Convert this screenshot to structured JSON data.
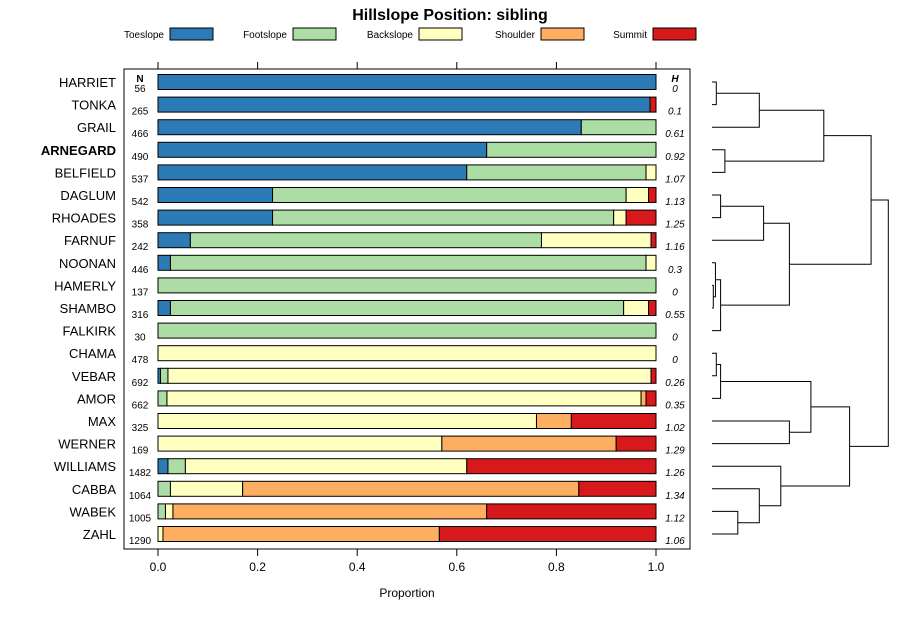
{
  "chart_data": {
    "type": "bar",
    "stacked": true,
    "orientation": "horizontal",
    "title": "Hillslope Position: sibling",
    "xlabel": "Proportion",
    "xlim": [
      0,
      1
    ],
    "x_ticks": [
      "0.0",
      "0.2",
      "0.4",
      "0.6",
      "0.8",
      "1.0"
    ],
    "n_header": "N",
    "h_header": "H",
    "legend": [
      {
        "name": "Toeslope",
        "color": "#2C7BB6"
      },
      {
        "name": "Footslope",
        "color": "#ABDDA4"
      },
      {
        "name": "Backslope",
        "color": "#FFFFBF"
      },
      {
        "name": "Shoulder",
        "color": "#FDAE61"
      },
      {
        "name": "Summit",
        "color": "#D7191C"
      }
    ],
    "rows": [
      {
        "name": "HARRIET",
        "n": "56",
        "h": "0",
        "bold": false,
        "values": [
          1.0,
          0,
          0,
          0,
          0
        ]
      },
      {
        "name": "TONKA",
        "n": "265",
        "h": "0.1",
        "bold": false,
        "values": [
          0.988,
          0,
          0,
          0,
          0.012
        ]
      },
      {
        "name": "GRAIL",
        "n": "466",
        "h": "0.61",
        "bold": false,
        "values": [
          0.85,
          0.15,
          0,
          0,
          0
        ]
      },
      {
        "name": "ARNEGARD",
        "n": "490",
        "h": "0.92",
        "bold": true,
        "values": [
          0.66,
          0.34,
          0,
          0,
          0
        ]
      },
      {
        "name": "BELFIELD",
        "n": "537",
        "h": "1.07",
        "bold": false,
        "values": [
          0.62,
          0.36,
          0.02,
          0,
          0
        ]
      },
      {
        "name": "DAGLUM",
        "n": "542",
        "h": "1.13",
        "bold": false,
        "values": [
          0.23,
          0.71,
          0.045,
          0,
          0.015
        ]
      },
      {
        "name": "RHOADES",
        "n": "358",
        "h": "1.25",
        "bold": false,
        "values": [
          0.23,
          0.685,
          0.025,
          0,
          0.06
        ]
      },
      {
        "name": "FARNUF",
        "n": "242",
        "h": "1.16",
        "bold": false,
        "values": [
          0.065,
          0.705,
          0.22,
          0,
          0.01
        ]
      },
      {
        "name": "NOONAN",
        "n": "446",
        "h": "0.3",
        "bold": false,
        "values": [
          0.025,
          0.955,
          0.02,
          0,
          0
        ]
      },
      {
        "name": "HAMERLY",
        "n": "137",
        "h": "0",
        "bold": false,
        "values": [
          0,
          1.0,
          0,
          0,
          0
        ]
      },
      {
        "name": "SHAMBO",
        "n": "316",
        "h": "0.55",
        "bold": false,
        "values": [
          0.025,
          0.91,
          0.05,
          0,
          0.015
        ]
      },
      {
        "name": "FALKIRK",
        "n": "30",
        "h": "0",
        "bold": false,
        "values": [
          0,
          1.0,
          0,
          0,
          0
        ]
      },
      {
        "name": "CHAMA",
        "n": "478",
        "h": "0",
        "bold": false,
        "values": [
          0,
          0,
          1.0,
          0,
          0
        ]
      },
      {
        "name": "VEBAR",
        "n": "692",
        "h": "0.26",
        "bold": false,
        "values": [
          0.005,
          0.015,
          0.97,
          0,
          0.01
        ]
      },
      {
        "name": "AMOR",
        "n": "662",
        "h": "0.35",
        "bold": false,
        "values": [
          0,
          0.018,
          0.952,
          0.01,
          0.02
        ]
      },
      {
        "name": "MAX",
        "n": "325",
        "h": "1.02",
        "bold": false,
        "values": [
          0,
          0,
          0.76,
          0.07,
          0.17
        ]
      },
      {
        "name": "WERNER",
        "n": "169",
        "h": "1.29",
        "bold": false,
        "values": [
          0,
          0,
          0.57,
          0.35,
          0.08
        ]
      },
      {
        "name": "WILLIAMS",
        "n": "1482",
        "h": "1.26",
        "bold": false,
        "values": [
          0.02,
          0.035,
          0.565,
          0,
          0.38
        ]
      },
      {
        "name": "CABBA",
        "n": "1064",
        "h": "1.34",
        "bold": false,
        "values": [
          0,
          0.025,
          0.145,
          0.675,
          0.155
        ]
      },
      {
        "name": "WABEK",
        "n": "1005",
        "h": "1.12",
        "bold": false,
        "values": [
          0,
          0.015,
          0.015,
          0.63,
          0.34
        ]
      },
      {
        "name": "ZAHL",
        "n": "1290",
        "h": "1.06",
        "bold": false,
        "values": [
          0,
          0,
          0.01,
          0.555,
          0.435
        ]
      }
    ],
    "dendrogram": {
      "leaf_order": [
        "HARRIET",
        "TONKA",
        "GRAIL",
        "ARNEGARD",
        "BELFIELD",
        "DAGLUM",
        "RHOADES",
        "FARNUF",
        "NOONAN",
        "HAMERLY",
        "SHAMBO",
        "FALKIRK",
        "CHAMA",
        "VEBAR",
        "AMOR",
        "MAX",
        "WERNER",
        "WILLIAMS",
        "CABBA",
        "WABEK",
        "ZAHL"
      ],
      "merges": [
        {
          "a": 0,
          "b": 1,
          "height": 0.1
        },
        {
          "a": "m0",
          "b": 2,
          "height": 1.1
        },
        {
          "a": 3,
          "b": 4,
          "height": 0.3
        },
        {
          "a": "m1",
          "b": "m2",
          "height": 2.6
        },
        {
          "a": 5,
          "b": 6,
          "height": 0.2
        },
        {
          "a": "m4",
          "b": 7,
          "height": 1.2
        },
        {
          "a": 9,
          "b": 10,
          "height": 0.03
        },
        {
          "a": 8,
          "b": "m6",
          "height": 0.08
        },
        {
          "a": "m7",
          "b": 11,
          "height": 0.2
        },
        {
          "a": "m5",
          "b": "m8",
          "height": 1.8
        },
        {
          "a": "m3",
          "b": "m9",
          "height": 3.7
        },
        {
          "a": 12,
          "b": 13,
          "height": 0.1
        },
        {
          "a": "m11",
          "b": 14,
          "height": 0.2
        },
        {
          "a": 15,
          "b": 16,
          "height": 1.8
        },
        {
          "a": "m12",
          "b": "m13",
          "height": 2.3
        },
        {
          "a": 19,
          "b": 20,
          "height": 0.6
        },
        {
          "a": 18,
          "b": "m15",
          "height": 1.1
        },
        {
          "a": 17,
          "b": "m16",
          "height": 1.6
        },
        {
          "a": "m14",
          "b": "m17",
          "height": 3.2
        },
        {
          "a": "m10",
          "b": "m18",
          "height": 4.1
        }
      ]
    }
  }
}
